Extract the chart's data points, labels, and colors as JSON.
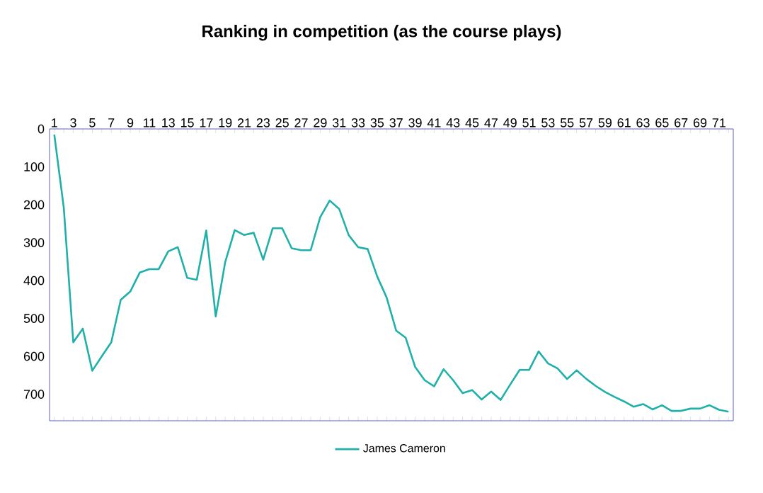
{
  "chart_data": {
    "type": "line",
    "title": "Ranking in competition (as the course plays)",
    "categories": [
      "1",
      null,
      "3",
      null,
      "5",
      null,
      "7",
      null,
      "9",
      null,
      "11",
      null,
      "13",
      null,
      "15",
      null,
      "17",
      null,
      "19",
      null,
      "21",
      null,
      "23",
      null,
      "25",
      null,
      "27",
      null,
      "29",
      null,
      "31",
      null,
      "33",
      null,
      "35",
      null,
      "37",
      null,
      "39",
      null,
      "41",
      null,
      "43",
      null,
      "45",
      null,
      "47",
      null,
      "49",
      null,
      "51",
      null,
      "53",
      null,
      "55",
      null,
      "57",
      null,
      "59",
      null,
      "61",
      null,
      "63",
      null,
      "65",
      null,
      "67",
      null,
      "69",
      null,
      "71",
      null
    ],
    "series": [
      {
        "name": "James Cameron",
        "color": "#1fb0aa",
        "values": [
          15,
          208,
          563,
          527,
          638,
          600,
          563,
          451,
          429,
          379,
          370,
          370,
          323,
          312,
          393,
          398,
          268,
          495,
          351,
          267,
          280,
          274,
          345,
          262,
          262,
          315,
          320,
          320,
          233,
          189,
          211,
          280,
          312,
          317,
          389,
          445,
          532,
          551,
          628,
          663,
          679,
          634,
          663,
          697,
          689,
          714,
          693,
          715,
          675,
          636,
          636,
          587,
          619,
          632,
          660,
          637,
          659,
          678,
          694,
          707,
          719,
          733,
          726,
          740,
          729,
          744,
          744,
          738,
          738,
          729,
          741,
          746
        ]
      }
    ],
    "ylim": [
      770,
      0
    ],
    "yticks": [
      0,
      100,
      200,
      300,
      400,
      500,
      600,
      700
    ],
    "grid": false,
    "legend": "bottom",
    "marker": "none",
    "line_style": "solid"
  }
}
